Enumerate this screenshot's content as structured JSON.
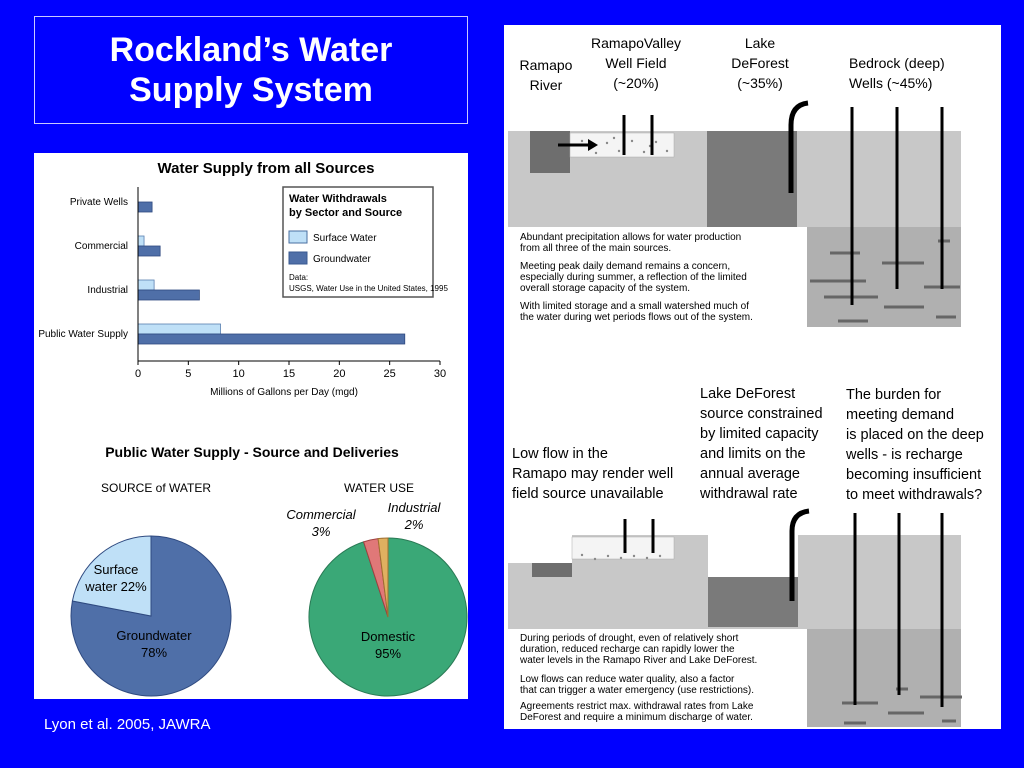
{
  "slide_title": "Rockland’s Water\nSupply System",
  "citation": "Lyon et al. 2005, JAWRA",
  "colors": {
    "background": "#0000ff",
    "surface_water": "#bfe0f7",
    "groundwater": "#4f6fa8",
    "domestic": "#3aa877",
    "commercial": "#e07878",
    "industrial": "#e0b060"
  },
  "chart_data": [
    {
      "type": "bar",
      "title": "Water Supply from all Sources",
      "categories": [
        "Private Wells",
        "Commercial",
        "Industrial",
        "Public Water Supply"
      ],
      "series": [
        {
          "name": "Surface Water",
          "values": [
            0,
            0.6,
            1.6,
            8.2
          ]
        },
        {
          "name": "Groundwater",
          "values": [
            1.4,
            2.2,
            6.1,
            26.5
          ]
        }
      ],
      "xlabel": "Millions of Gallons per Day (mgd)",
      "xlim": [
        0,
        30
      ],
      "xticks": [
        "0",
        "5",
        "10",
        "15",
        "20",
        "25",
        "30"
      ],
      "orientation": "horizontal",
      "legend_title": "Water Withdrawals\nby Sector and Source",
      "legend_note": "Data:\nUSGS, Water Use in the United States, 1995"
    },
    {
      "type": "pie",
      "section_title": "Public Water Supply - Source and  Deliveries",
      "title": "SOURCE of WATER",
      "slices": [
        {
          "label": "Surface\nwater 22%",
          "value": 22
        },
        {
          "label": "Groundwater\n78%",
          "value": 78
        }
      ]
    },
    {
      "type": "pie",
      "title": "WATER USE",
      "slices": [
        {
          "label": "Domestic\n95%",
          "value": 95
        },
        {
          "label": "Commercial\n3%",
          "value": 3
        },
        {
          "label": "Industrial\n2%",
          "value": 2
        }
      ]
    }
  ],
  "diagram": {
    "top_labels": [
      "Ramapo\nRiver",
      "RamapoValley\nWell Field\n(~20%)",
      "Lake\nDeForest\n(~35%)",
      "Bedrock (deep)\nWells  (~45%)"
    ],
    "top_notes": [
      "Abundant precipitation allows for water production\nfrom all three of the main sources.",
      "Meeting peak daily demand remains a concern,\nespecially during summer, a reflection of the limited\noverall storage capacity of the system.",
      "With limited storage and a small watershed much of\nthe water during wet periods flows out of the system."
    ],
    "bottom_labels": [
      "Low flow in the\nRamapo may render well\nfield source unavailable",
      "Lake DeForest\nsource constrained\nby limited capacity\nand limits on the\nannual average\nwithdrawal rate",
      "The burden for\nmeeting demand\nis placed on the deep\nwells - is recharge\nbecoming insufficient\nto meet withdrawals?"
    ],
    "bottom_notes": [
      "During periods of drought, even of relatively short\nduration, reduced recharge can rapidly lower the\nwater levels in the Ramapo River and Lake DeForest.",
      "Low flows can reduce water quality, also a factor\nthat can trigger a water emergency (use restrictions).",
      "Agreements restrict max. withdrawal rates from Lake\nDeForest and require a minimum discharge of water."
    ]
  }
}
